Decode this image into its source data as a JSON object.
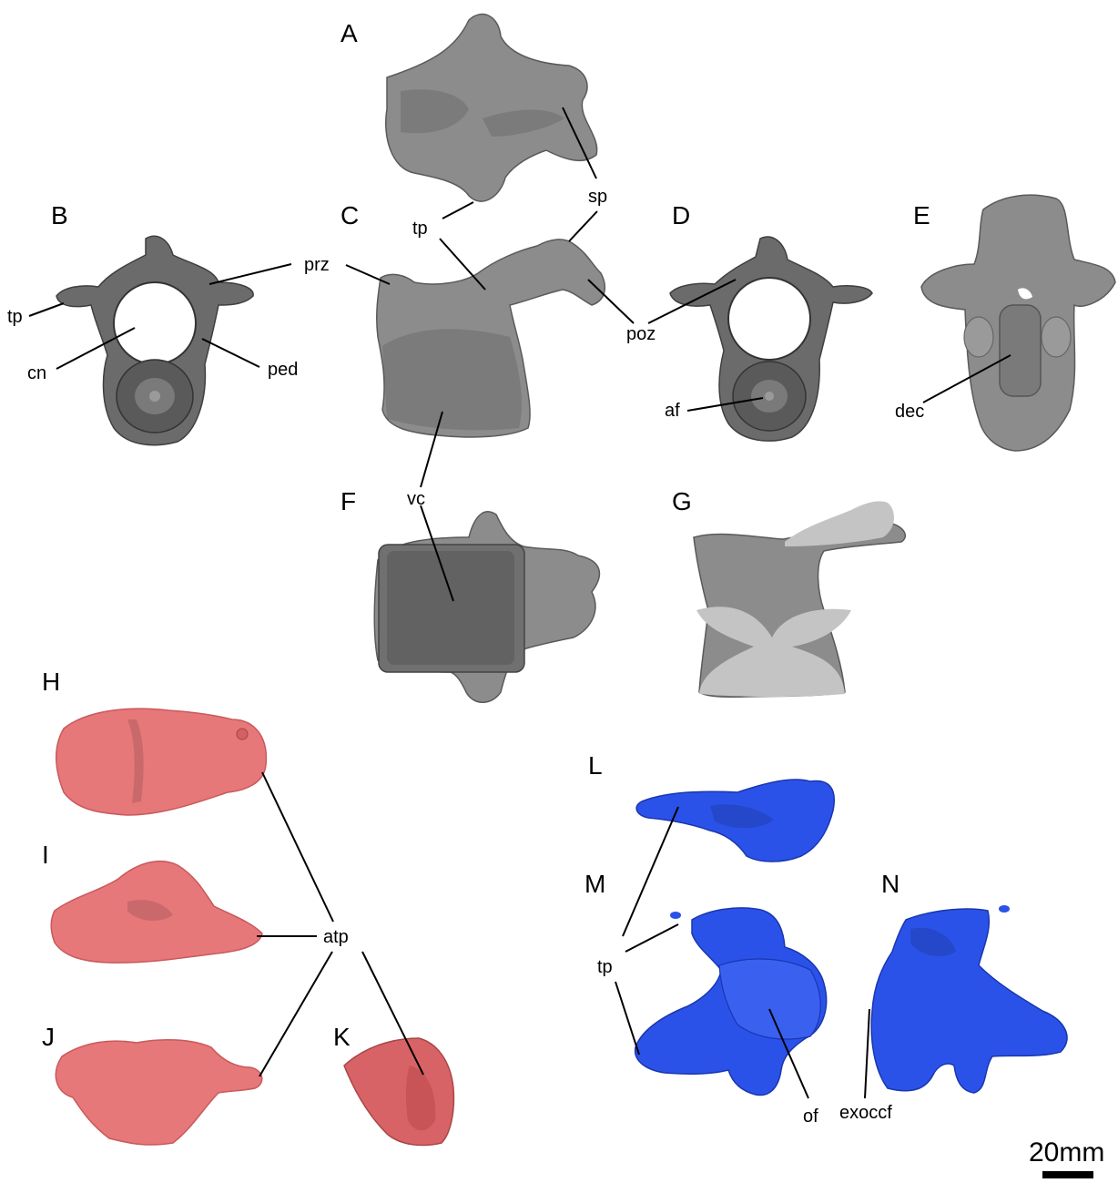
{
  "panels": [
    "A",
    "B",
    "C",
    "D",
    "E",
    "F",
    "G",
    "H",
    "I",
    "J",
    "K",
    "L",
    "M",
    "N"
  ],
  "labels": {
    "sp": "sp",
    "tp": "tp",
    "prz": "prz",
    "poz": "poz",
    "cn": "cn",
    "ped": "ped",
    "af": "af",
    "dec": "dec",
    "vc": "vc",
    "atp": "atp",
    "of": "of",
    "exoccf": "exoccf"
  },
  "scale_bar": {
    "label": "20mm"
  },
  "colors": {
    "vertebra_grey": "#8c8c8c",
    "vertebra_dark": "#6b6b6b",
    "section_cut": "#c4c4c4",
    "atlas_pink": "#e6787a",
    "exoccipital_blue": "#2b52e8"
  }
}
